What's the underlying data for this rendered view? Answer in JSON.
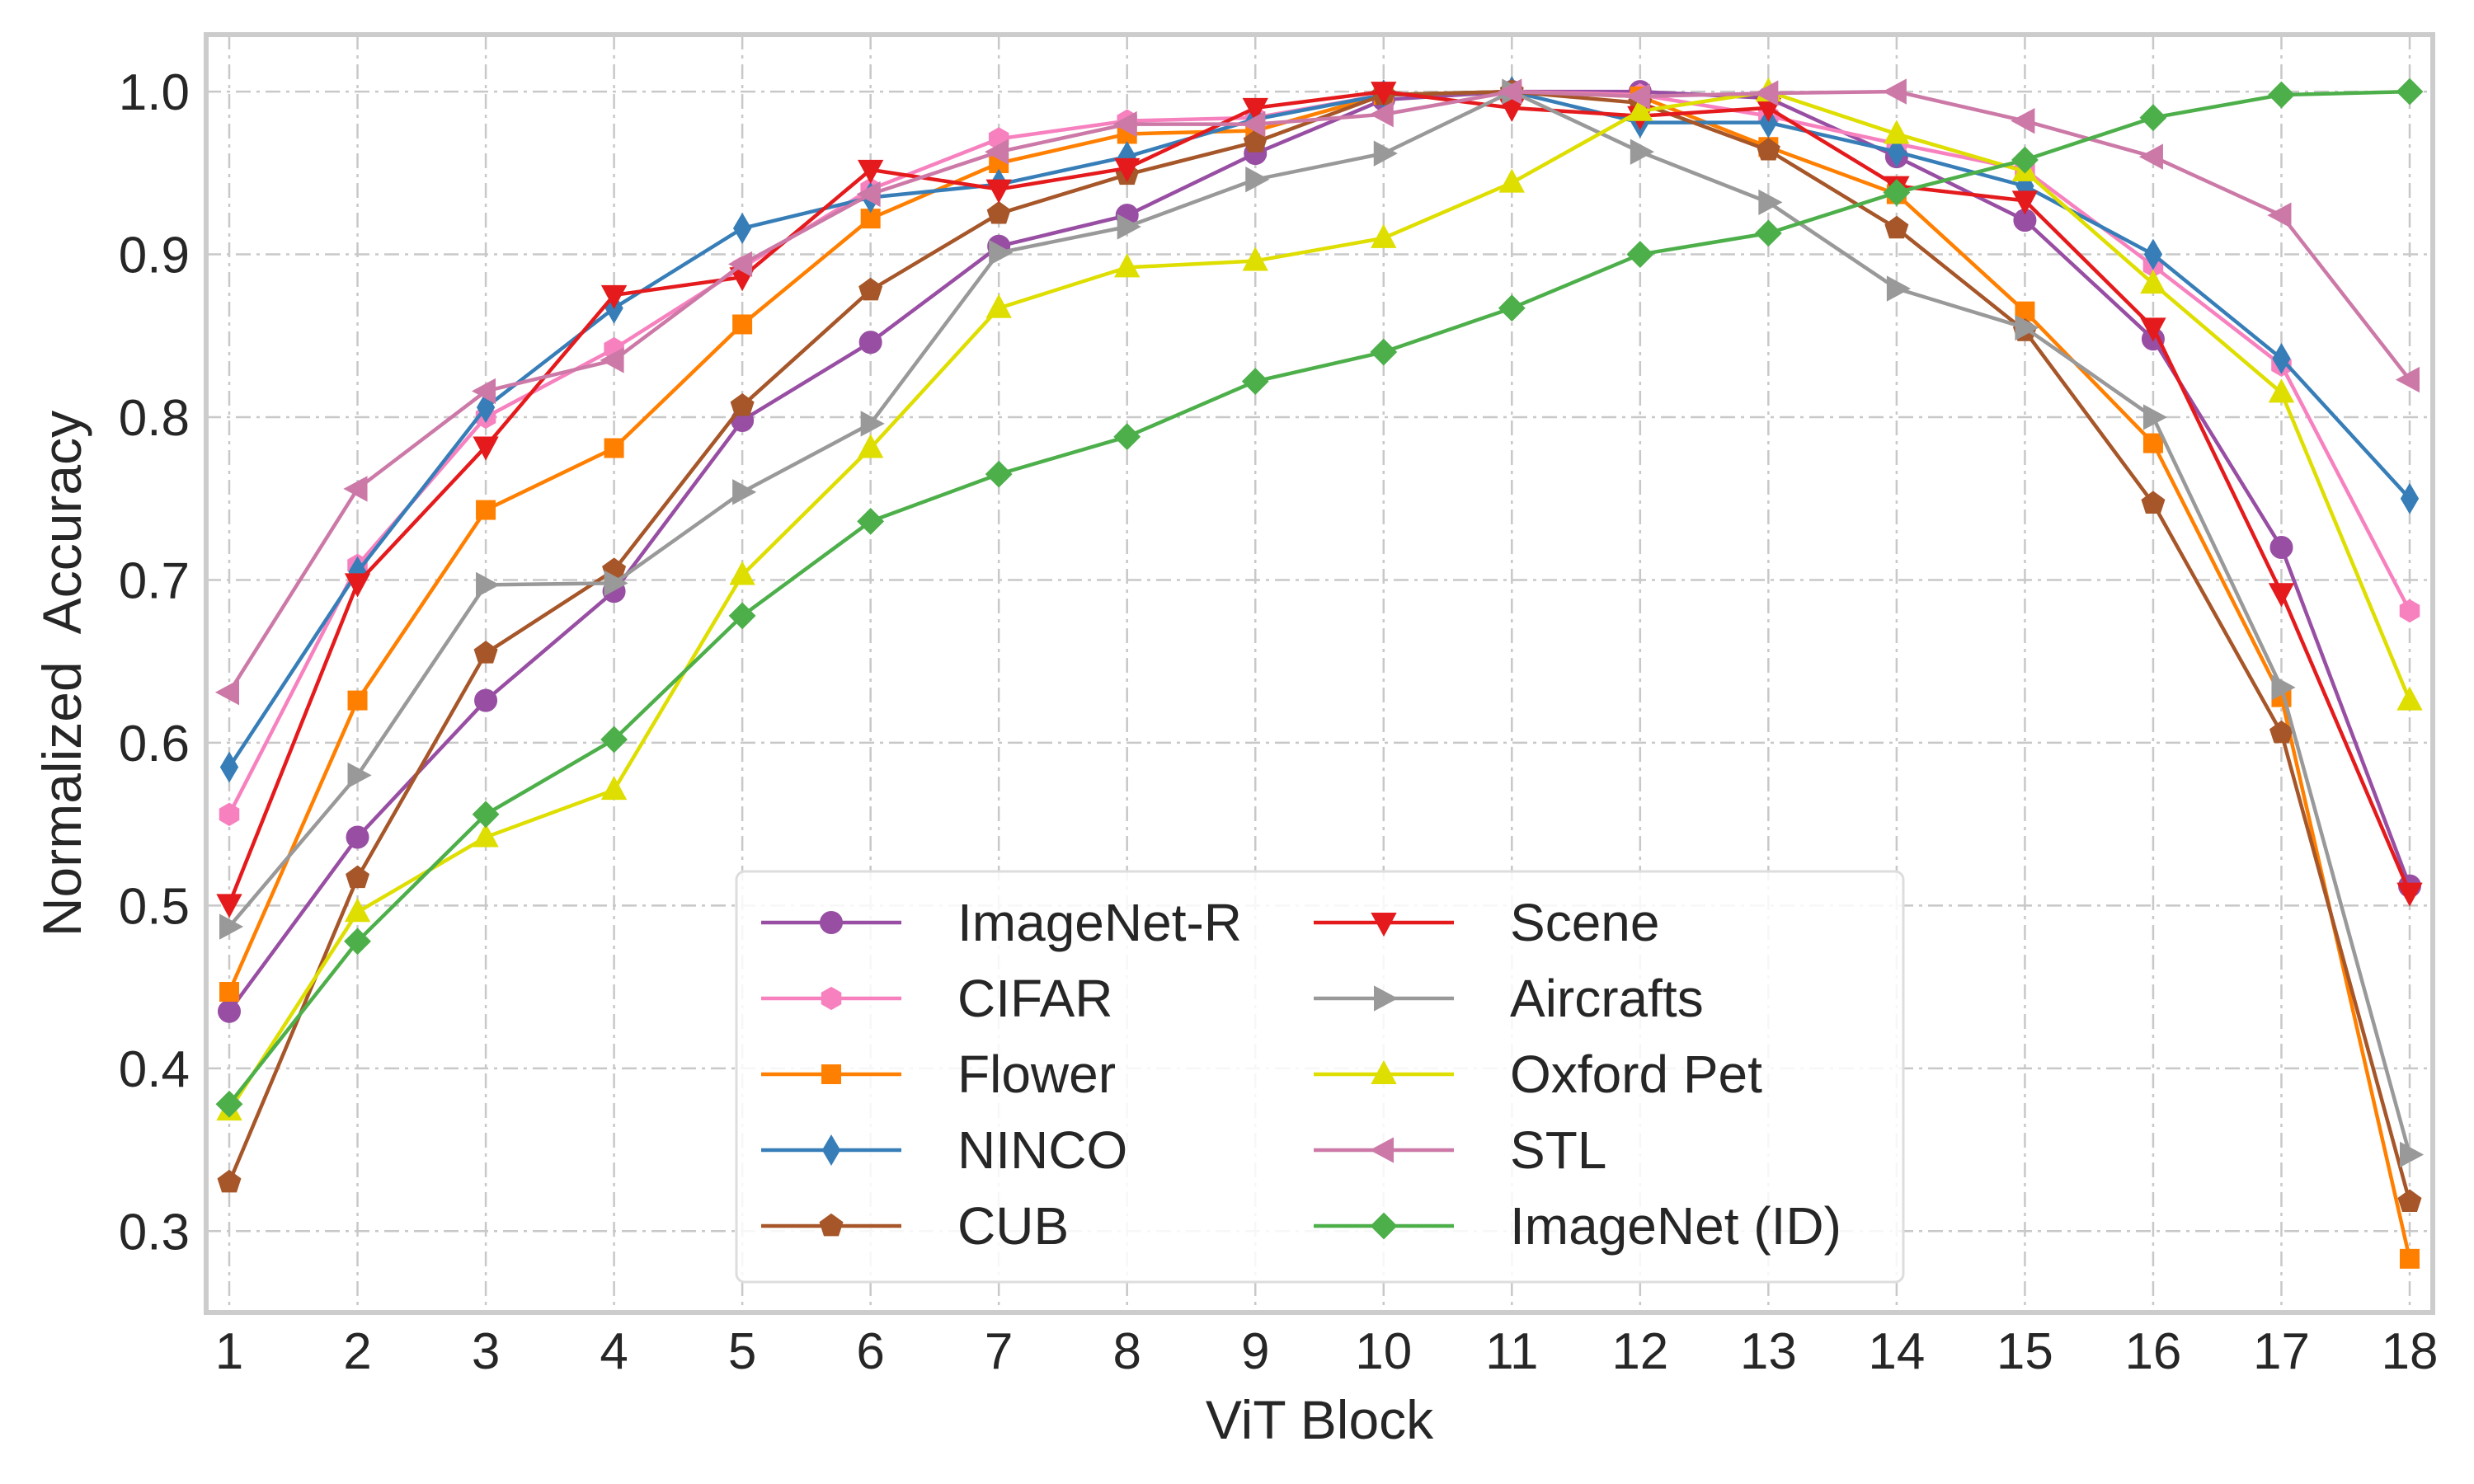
{
  "chart_data": {
    "type": "line",
    "title": "",
    "xlabel": "ViT Block",
    "ylabel": "Normalized  Accuracy",
    "xlim": [
      1,
      18
    ],
    "ylim": [
      0.25,
      1.035
    ],
    "x": [
      1,
      2,
      3,
      4,
      5,
      6,
      7,
      8,
      9,
      10,
      11,
      12,
      13,
      14,
      15,
      16,
      17,
      18
    ],
    "x_tick_labels": [
      "1",
      "2",
      "3",
      "4",
      "5",
      "6",
      "7",
      "8",
      "9",
      "10",
      "11",
      "12",
      "13",
      "14",
      "15",
      "16",
      "17",
      "18"
    ],
    "y_ticks": [
      0.3,
      0.4,
      0.5,
      0.6,
      0.7,
      0.8,
      0.9,
      1.0
    ],
    "y_tick_labels": [
      "0.3",
      "0.4",
      "0.5",
      "0.6",
      "0.7",
      "0.8",
      "0.9",
      "1.0"
    ],
    "grid": true,
    "legend_position": "lower-center",
    "series": [
      {
        "name": "ImageNet-R",
        "color": "#984ea3",
        "marker": "circle",
        "values": [
          0.435,
          0.542,
          0.626,
          0.693,
          0.798,
          0.846,
          0.905,
          0.924,
          0.962,
          0.995,
          1.0,
          1.0,
          0.996,
          0.96,
          0.921,
          0.848,
          0.72,
          0.512
        ]
      },
      {
        "name": "CIFAR",
        "color": "#f781bf",
        "marker": "hexagon",
        "values": [
          0.556,
          0.709,
          0.8,
          0.842,
          0.892,
          0.94,
          0.971,
          0.982,
          0.984,
          0.998,
          1.0,
          0.998,
          0.985,
          0.968,
          0.952,
          0.893,
          0.832,
          0.681
        ]
      },
      {
        "name": "Flower",
        "color": "#ff7f00",
        "marker": "square",
        "values": [
          0.447,
          0.626,
          0.743,
          0.781,
          0.857,
          0.922,
          0.956,
          0.974,
          0.976,
          0.998,
          1.0,
          0.997,
          0.966,
          0.937,
          0.865,
          0.784,
          0.628,
          0.283
        ]
      },
      {
        "name": "NINCO",
        "color": "#377eb8",
        "marker": "thin-diamond",
        "values": [
          0.585,
          0.705,
          0.806,
          0.867,
          0.916,
          0.935,
          0.943,
          0.96,
          0.983,
          0.998,
          1.0,
          0.981,
          0.981,
          0.963,
          0.942,
          0.9,
          0.836,
          0.75
        ]
      },
      {
        "name": "CUB",
        "color": "#a65628",
        "marker": "pentagon",
        "values": [
          0.33,
          0.517,
          0.655,
          0.706,
          0.807,
          0.878,
          0.925,
          0.949,
          0.969,
          0.998,
          1.0,
          0.993,
          0.964,
          0.916,
          0.853,
          0.747,
          0.606,
          0.318
        ]
      },
      {
        "name": "Scene",
        "color": "#e41a1c",
        "marker": "triangle-down",
        "values": [
          0.501,
          0.698,
          0.782,
          0.875,
          0.886,
          0.952,
          0.94,
          0.953,
          0.99,
          1.0,
          0.99,
          0.985,
          0.99,
          0.942,
          0.933,
          0.855,
          0.692,
          0.508
        ]
      },
      {
        "name": "Aircrafts",
        "color": "#999999",
        "marker": "triangle-right",
        "values": [
          0.487,
          0.58,
          0.697,
          0.698,
          0.754,
          0.796,
          0.901,
          0.917,
          0.946,
          0.962,
          1.0,
          0.963,
          0.932,
          0.879,
          0.855,
          0.8,
          0.634,
          0.347
        ]
      },
      {
        "name": "Oxford Pet",
        "color": "#dede00",
        "marker": "triangle-up",
        "values": [
          0.374,
          0.496,
          0.542,
          0.571,
          0.703,
          0.781,
          0.867,
          0.892,
          0.896,
          0.91,
          0.944,
          0.988,
          1.0,
          0.974,
          0.951,
          0.882,
          0.815,
          0.626
        ]
      },
      {
        "name": "STL",
        "color": "#cc79a7",
        "marker": "triangle-left",
        "values": [
          0.631,
          0.756,
          0.816,
          0.835,
          0.894,
          0.937,
          0.963,
          0.98,
          0.98,
          0.986,
          1.0,
          0.997,
          0.999,
          1.0,
          0.982,
          0.96,
          0.924,
          0.823
        ]
      },
      {
        "name": "ImageNet (ID)",
        "color": "#4daf4a",
        "marker": "diamond",
        "values": [
          0.378,
          0.478,
          0.556,
          0.602,
          0.678,
          0.736,
          0.765,
          0.788,
          0.822,
          0.84,
          0.867,
          0.9,
          0.913,
          0.938,
          0.958,
          0.984,
          0.998,
          1.0
        ]
      }
    ]
  }
}
